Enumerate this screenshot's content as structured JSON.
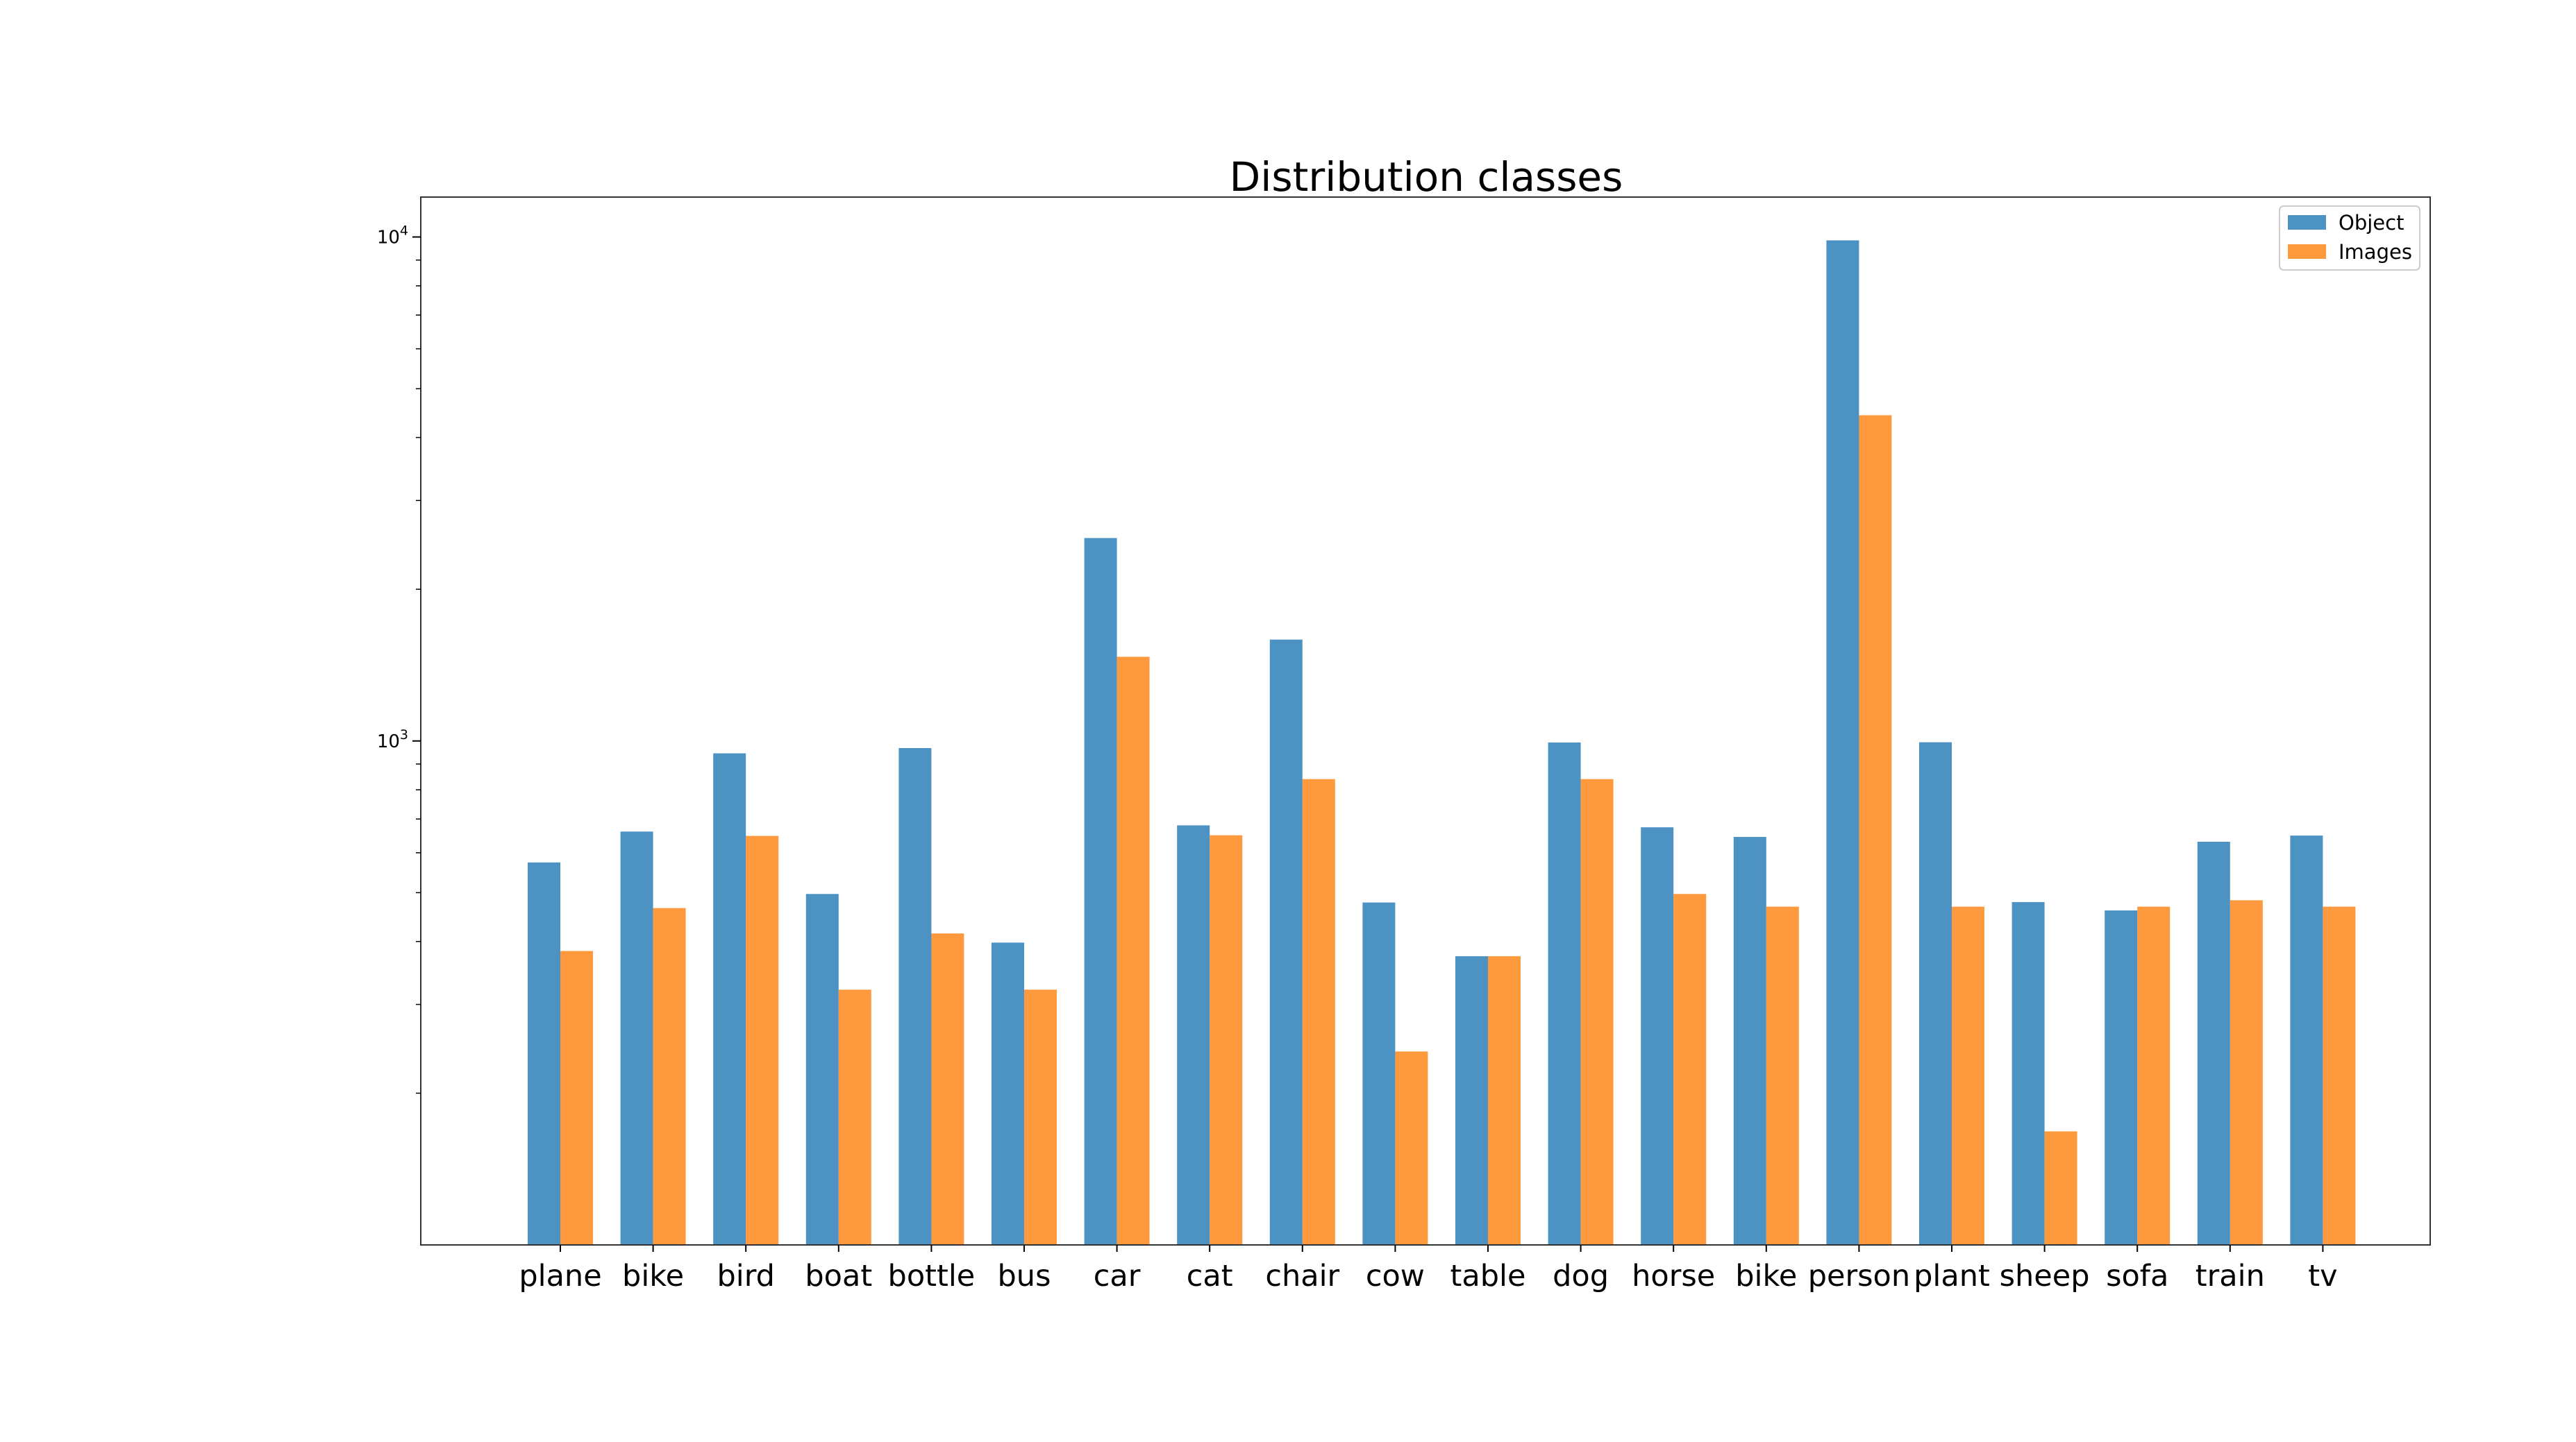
{
  "chart_data": {
    "type": "bar",
    "title": "Distribution classes",
    "xlabel": "",
    "ylabel": "",
    "yscale": "log",
    "ylim": [
      100,
      12000
    ],
    "yticks": [
      {
        "value": 1000,
        "base": "10",
        "exp": "3"
      },
      {
        "value": 10000,
        "base": "10",
        "exp": "4"
      }
    ],
    "legend_position": "top-right",
    "grid": false,
    "categories": [
      "plane",
      "bike",
      "bird",
      "boat",
      "bottle",
      "bus",
      "car",
      "cat",
      "chair",
      "cow",
      "table",
      "dog",
      "horse",
      "bike",
      "person",
      "plant",
      "sheep",
      "sofa",
      "train",
      "tv"
    ],
    "series": [
      {
        "name": "Object",
        "color": "#1f77b4",
        "values": [
          574,
          661,
          945,
          497,
          968,
          398,
          2527,
          680,
          1589,
          478,
          374,
          993,
          674,
          645,
          9846,
          994,
          479,
          461,
          631,
          649
        ]
      },
      {
        "name": "Images",
        "color": "#ff7f0e",
        "values": [
          383,
          466,
          648,
          321,
          415,
          321,
          1469,
          650,
          840,
          242,
          374,
          840,
          497,
          469,
          4429,
          469,
          168,
          469,
          483,
          469
        ]
      }
    ]
  }
}
